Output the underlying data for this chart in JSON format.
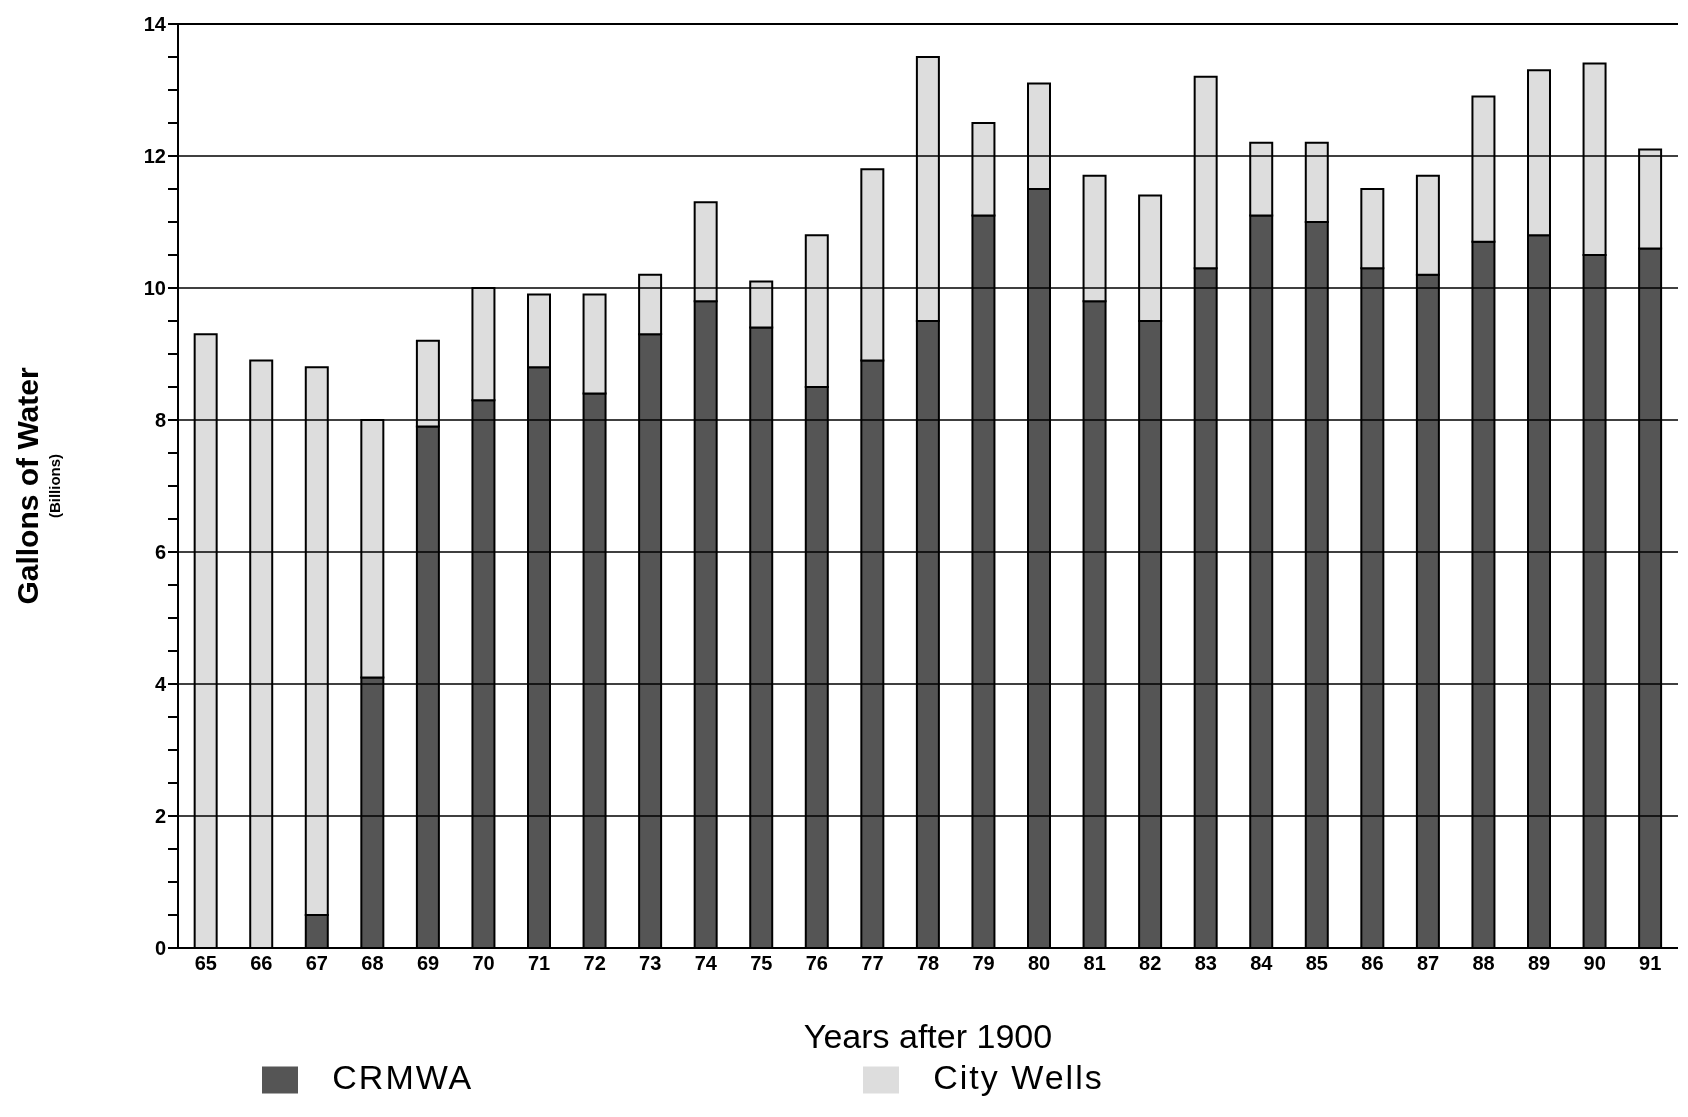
{
  "chart_data": {
    "type": "bar",
    "stacked": true,
    "xlabel": "Years after 1900",
    "ylabel": "Gallons of Water\n(Billions)",
    "categories": [
      "65",
      "66",
      "67",
      "68",
      "69",
      "70",
      "71",
      "72",
      "73",
      "74",
      "75",
      "76",
      "77",
      "78",
      "79",
      "80",
      "81",
      "82",
      "83",
      "84",
      "85",
      "86",
      "87",
      "88",
      "89",
      "90",
      "91"
    ],
    "series": [
      {
        "name": "CRMWA",
        "color": "#555555",
        "values": [
          0,
          0,
          0.5,
          4.1,
          7.9,
          8.3,
          8.8,
          8.4,
          9.3,
          9.8,
          9.4,
          8.5,
          8.9,
          9.5,
          11.1,
          11.5,
          9.8,
          9.5,
          10.3,
          11.1,
          11.0,
          10.3,
          10.2,
          10.7,
          10.8,
          10.5,
          10.6
        ]
      },
      {
        "name": "City Wells",
        "color": "#dddddd",
        "values": [
          9.3,
          8.9,
          8.3,
          3.9,
          1.3,
          1.7,
          1.1,
          1.5,
          0.9,
          1.5,
          0.7,
          2.3,
          2.9,
          4.0,
          1.4,
          1.6,
          1.9,
          1.9,
          2.9,
          1.1,
          1.2,
          1.2,
          1.5,
          2.2,
          2.5,
          2.9,
          1.5
        ]
      }
    ],
    "ylim": [
      0,
      14
    ],
    "yticks": [
      0,
      {
        "value": 0.5,
        "label": null
      },
      {
        "value": 1,
        "label": null
      },
      {
        "value": 1.5,
        "label": null
      },
      2,
      {
        "value": 2.5,
        "label": null
      },
      {
        "value": 3,
        "label": null
      },
      {
        "value": 3.5,
        "label": null
      },
      4,
      {
        "value": 4.5,
        "label": null
      },
      {
        "value": 5,
        "label": null
      },
      {
        "value": 5.5,
        "label": null
      },
      6,
      {
        "value": 6.5,
        "label": null
      },
      {
        "value": 7,
        "label": null
      },
      {
        "value": 7.5,
        "label": null
      },
      8,
      {
        "value": 8.5,
        "label": null
      },
      {
        "value": 9,
        "label": null
      },
      {
        "value": 9.5,
        "label": null
      },
      10,
      {
        "value": 10.5,
        "label": null
      },
      {
        "value": 11,
        "label": null
      },
      {
        "value": 11.5,
        "label": null
      },
      12,
      {
        "value": 12.5,
        "label": null
      },
      {
        "value": 13,
        "label": null
      },
      {
        "value": 13.5,
        "label": null
      },
      14
    ],
    "grid": "y",
    "legend": "bottom"
  }
}
